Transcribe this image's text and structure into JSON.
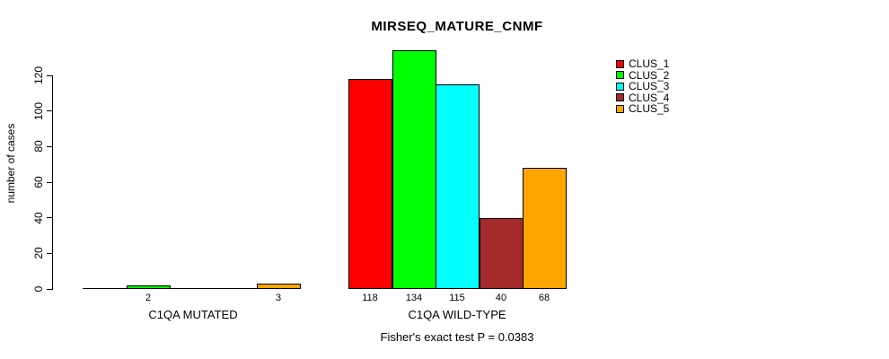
{
  "title": "MIRSEQ_MATURE_CNMF",
  "annotation": "Fisher's exact test P = 0.0383",
  "chart_data": {
    "type": "bar",
    "title": "MIRSEQ_MATURE_CNMF",
    "xlabel": "",
    "ylabel": "number of cases",
    "ylim": [
      0,
      120
    ],
    "yticks": [
      0,
      20,
      40,
      60,
      80,
      100,
      120
    ],
    "grid": false,
    "legend_position": "top-right",
    "categories": [
      "C1QA MUTATED",
      "C1QA WILD-TYPE"
    ],
    "series": [
      {
        "name": "CLUS_1",
        "color": "#ff0000",
        "values": [
          0,
          118
        ]
      },
      {
        "name": "CLUS_2",
        "color": "#00ff00",
        "values": [
          2,
          134
        ]
      },
      {
        "name": "CLUS_3",
        "color": "#00ffff",
        "values": [
          0,
          115
        ]
      },
      {
        "name": "CLUS_4",
        "color": "#a52a2a",
        "values": [
          0,
          40
        ]
      },
      {
        "name": "CLUS_5",
        "color": "#ffa500",
        "values": [
          3,
          68
        ]
      }
    ],
    "bar_labels": [
      [
        "",
        "118"
      ],
      [
        "2",
        "134"
      ],
      [
        "",
        "115"
      ],
      [
        "",
        "40"
      ],
      [
        "3",
        "68"
      ]
    ],
    "annotation": "Fisher's exact test P = 0.0383"
  },
  "colors": {
    "axis": "#000000",
    "background": "#ffffff",
    "text": "#000000"
  }
}
